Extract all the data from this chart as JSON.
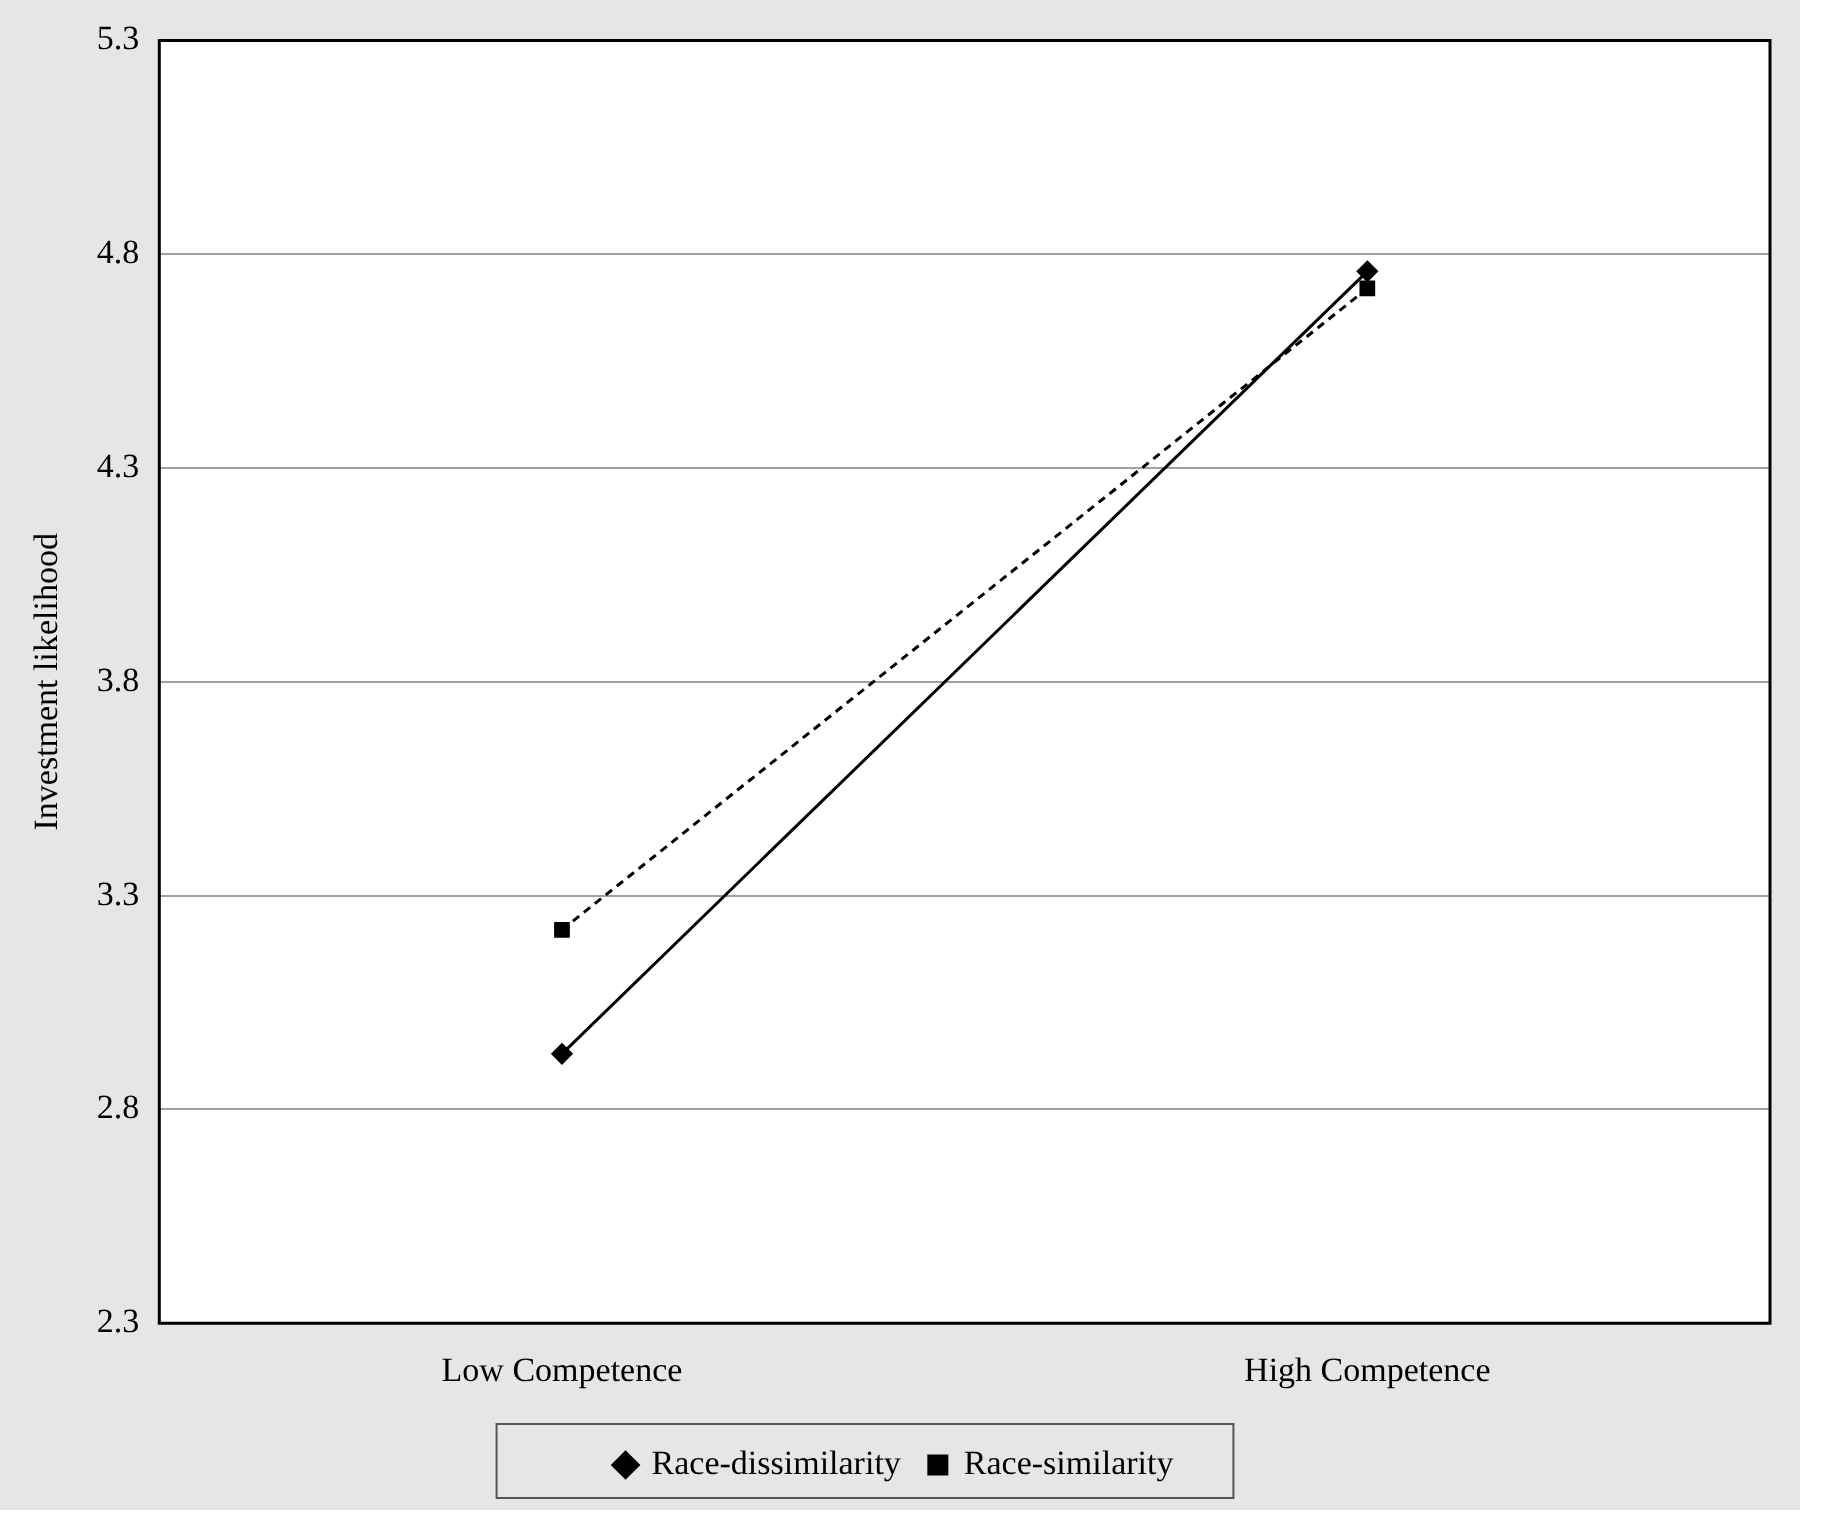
{
  "chart_data": {
    "type": "line",
    "ylabel": "Investment likelihood",
    "categories": [
      "Low Competence",
      "High Competence"
    ],
    "series": [
      {
        "name": "Race-dissimilarity",
        "color": "#000000",
        "values": [
          2.93,
          4.76
        ],
        "marker": "diamond",
        "line_style": "solid"
      },
      {
        "name": "Race-similarity",
        "color": "#000000",
        "values": [
          3.22,
          4.72
        ],
        "marker": "square",
        "line_style": "dashed"
      }
    ],
    "ylim": [
      2.3,
      5.3
    ],
    "yticks": [
      2.3,
      2.8,
      3.3,
      3.8,
      4.3,
      4.8,
      5.3
    ],
    "grid": "y",
    "legend": "bottom"
  }
}
